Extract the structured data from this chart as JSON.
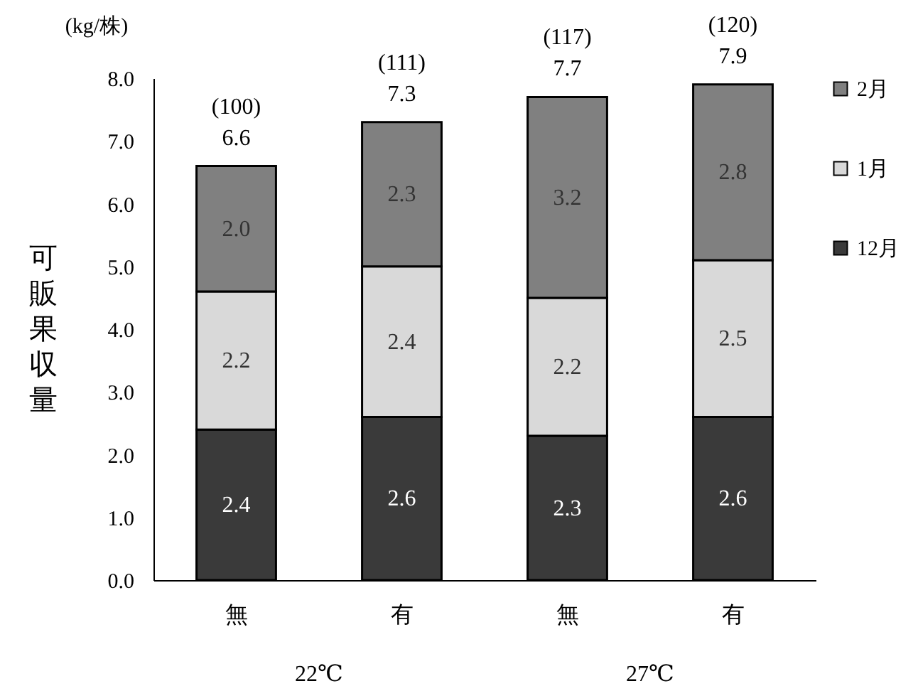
{
  "chart_data": {
    "type": "bar",
    "ylabel": "可販果収量",
    "categories": [
      "無",
      "有",
      "無",
      "有"
    ],
    "series": [
      {
        "name": "12月",
        "color": "#3a3a3a",
        "values": [
          2.4,
          2.6,
          2.3,
          2.6
        ],
        "value_labels": [
          "2.4",
          "2.6",
          "2.3",
          "2.6"
        ]
      },
      {
        "name": "1月",
        "color": "#d9d9d9",
        "values": [
          2.2,
          2.4,
          2.2,
          2.5
        ],
        "value_labels": [
          "2.2",
          "2.4",
          "2.2",
          "2.5"
        ]
      },
      {
        "name": "2月",
        "color": "#808080",
        "values": [
          2.0,
          2.3,
          3.2,
          2.8
        ],
        "value_labels": [
          "2.0",
          "2.3",
          "3.2",
          "2.8"
        ]
      }
    ],
    "stacked": true,
    "totals": [
      "(100)\n6.6",
      "(111)\n7.3",
      "(117)\n7.7",
      "(120)\n7.9"
    ],
    "ylim": [
      0,
      8
    ],
    "yticks": [
      {
        "value": 0,
        "label": "0.0"
      },
      {
        "value": 1,
        "label": "1.0"
      },
      {
        "value": 2,
        "label": "2.0"
      },
      {
        "value": 3,
        "label": "3.0"
      },
      {
        "value": 4,
        "label": "4.0"
      },
      {
        "value": 5,
        "label": "5.0"
      },
      {
        "value": 6,
        "label": "6.0"
      },
      {
        "value": 7,
        "label": "7.0"
      },
      {
        "value": 8,
        "label": "8.0"
      }
    ],
    "grid": false,
    "legend": "right",
    "annotations": [
      "(kg/株)",
      "22℃",
      "27℃"
    ]
  }
}
